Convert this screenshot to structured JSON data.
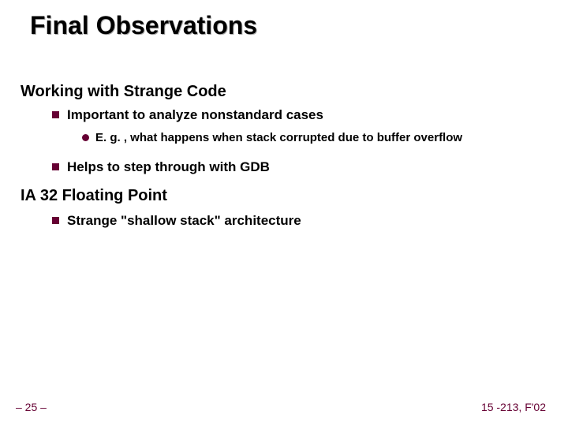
{
  "colors": {
    "accent": "#660033",
    "text": "#000000",
    "background": "#ffffff",
    "title_shadow": "#aaaaaa"
  },
  "typography": {
    "font_family": "Arial",
    "title_size_pt": 32,
    "section_size_pt": 20,
    "bullet_size_pt": 17,
    "subbullet_size_pt": 15,
    "footer_size_pt": 14
  },
  "title": "Final Observations",
  "sections": [
    {
      "heading": "Working with Strange Code",
      "bullets": [
        {
          "text": "Important to analyze nonstandard cases",
          "subbullets": [
            "E. g. , what happens when stack corrupted due to buffer overflow"
          ]
        },
        {
          "text": "Helps to step through with GDB",
          "subbullets": []
        }
      ]
    },
    {
      "heading": "IA 32 Floating Point",
      "bullets": [
        {
          "text": "Strange \"shallow stack\" architecture",
          "subbullets": []
        }
      ]
    }
  ],
  "footer": {
    "left": "– 25 –",
    "right": "15 -213, F'02"
  },
  "layout": {
    "slide_width": 720,
    "slide_height": 540,
    "bullet_marker": "square",
    "subbullet_marker": "disc"
  }
}
